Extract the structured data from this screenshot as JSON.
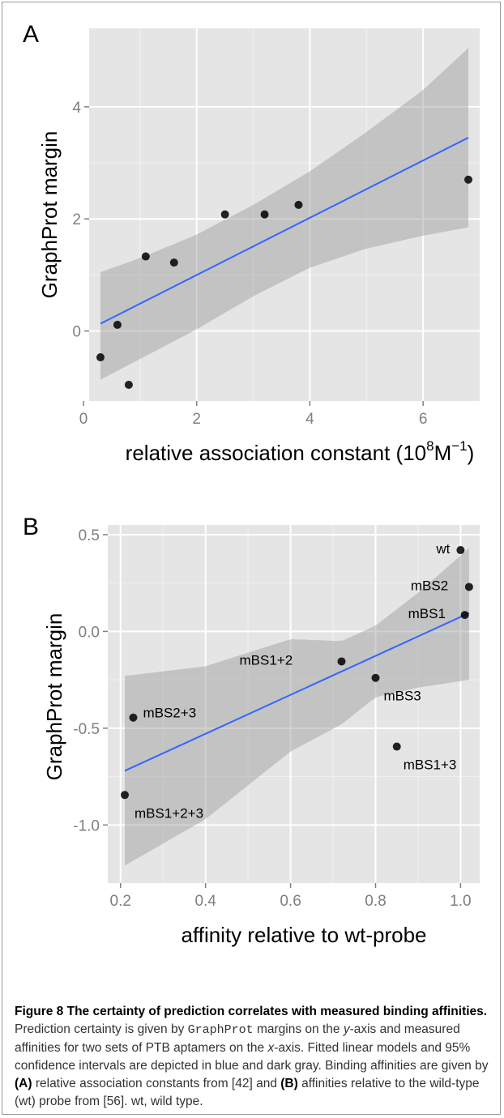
{
  "chart_data": [
    {
      "panel": "A",
      "type": "scatter",
      "xlabel": "relative association constant (10^8 M^-1)",
      "xlabel_parts": {
        "main": "relative association constant ",
        "open": "(10",
        "sup1": "8",
        "mid": "M",
        "sup2": "−1",
        "close": ")"
      },
      "ylabel": "GraphProt margin",
      "xlim": [
        0.1,
        7.0
      ],
      "ylim": [
        -1.25,
        5.4
      ],
      "xticks": [
        0,
        2,
        4,
        6
      ],
      "yticks": [
        0,
        2,
        4
      ],
      "grid": true,
      "points": [
        {
          "x": 0.3,
          "y": -0.47
        },
        {
          "x": 0.6,
          "y": 0.11
        },
        {
          "x": 0.8,
          "y": -0.96
        },
        {
          "x": 1.1,
          "y": 1.33
        },
        {
          "x": 1.6,
          "y": 1.22
        },
        {
          "x": 2.5,
          "y": 2.08
        },
        {
          "x": 3.2,
          "y": 2.08
        },
        {
          "x": 3.8,
          "y": 2.25
        },
        {
          "x": 6.8,
          "y": 2.7
        }
      ],
      "fit": {
        "x": [
          0.3,
          6.8
        ],
        "y": [
          0.13,
          3.45
        ]
      },
      "ci": {
        "x": [
          0.3,
          1.0,
          2.0,
          3.0,
          4.0,
          5.0,
          6.0,
          6.8
        ],
        "upper": [
          1.05,
          1.3,
          1.72,
          2.25,
          2.85,
          3.55,
          4.3,
          5.05
        ],
        "lower": [
          -0.87,
          -0.5,
          0.03,
          0.62,
          1.13,
          1.47,
          1.7,
          1.85
        ]
      },
      "fit_color": "#3366ff",
      "ci_color": "#999999",
      "panel_bg": "#e5e5e5",
      "point_color": "#000000"
    },
    {
      "panel": "B",
      "type": "scatter",
      "xlabel": "affinity relative to wt-probe",
      "ylabel": "GraphProt margin",
      "xlim": [
        0.17,
        1.045
      ],
      "ylim": [
        -1.3,
        0.55
      ],
      "xticks": [
        0.2,
        0.4,
        0.6,
        0.8,
        1.0
      ],
      "xtick_labels": [
        "0.2",
        "0.4",
        "0.6",
        "0.8",
        "1.0"
      ],
      "yticks": [
        0.5,
        0.0,
        -0.5,
        -1.0
      ],
      "ytick_labels": [
        "0.5",
        "0.0",
        "-0.5",
        "-1.0"
      ],
      "grid": true,
      "points": [
        {
          "label": "wt",
          "x": 1.0,
          "y": 0.42
        },
        {
          "label": "mBS2",
          "x": 1.02,
          "y": 0.23
        },
        {
          "label": "mBS1",
          "x": 1.01,
          "y": 0.085
        },
        {
          "label": "mBS1+2",
          "x": 0.72,
          "y": -0.155
        },
        {
          "label": "mBS3",
          "x": 0.8,
          "y": -0.24
        },
        {
          "label": "mBS2+3",
          "x": 0.23,
          "y": -0.445
        },
        {
          "label": "mBS1+3",
          "x": 0.85,
          "y": -0.595
        },
        {
          "label": "mBS1+2+3",
          "x": 0.21,
          "y": -0.845
        }
      ],
      "fit": {
        "x": [
          0.21,
          1.02
        ],
        "y": [
          -0.72,
          0.095
        ]
      },
      "ci": {
        "x": [
          0.21,
          0.4,
          0.6,
          0.72,
          0.8,
          0.9,
          1.02
        ],
        "upper": [
          -0.23,
          -0.18,
          -0.04,
          -0.05,
          0.03,
          0.2,
          0.43
        ],
        "lower": [
          -1.21,
          -0.97,
          -0.62,
          -0.48,
          -0.34,
          -0.29,
          -0.25
        ]
      },
      "fit_color": "#3366ff",
      "ci_color": "#999999",
      "panel_bg": "#e5e5e5",
      "point_color": "#000000"
    }
  ],
  "panel_letters": {
    "a": "A",
    "b": "B"
  },
  "caption": {
    "title": "Figure 8 The certainty of prediction correlates with measured binding affinities.",
    "t1": " Prediction certainty is given by ",
    "code": "GraphProt",
    "t2": " margins on the ",
    "y_italic": "y",
    "t3": "-axis and measured affinities for two sets of PTB aptamers on the ",
    "x_italic": "x",
    "t4": "-axis. Fitted linear models and 95% confidence intervals are depicted in blue and dark gray. Binding affinities are given by ",
    "ref_a": "(A)",
    "t5": " relative association constants from [42] and ",
    "ref_b": "(B)",
    "t6": " affinities relative to the wild-type (wt) probe from [56]. wt, wild type."
  }
}
